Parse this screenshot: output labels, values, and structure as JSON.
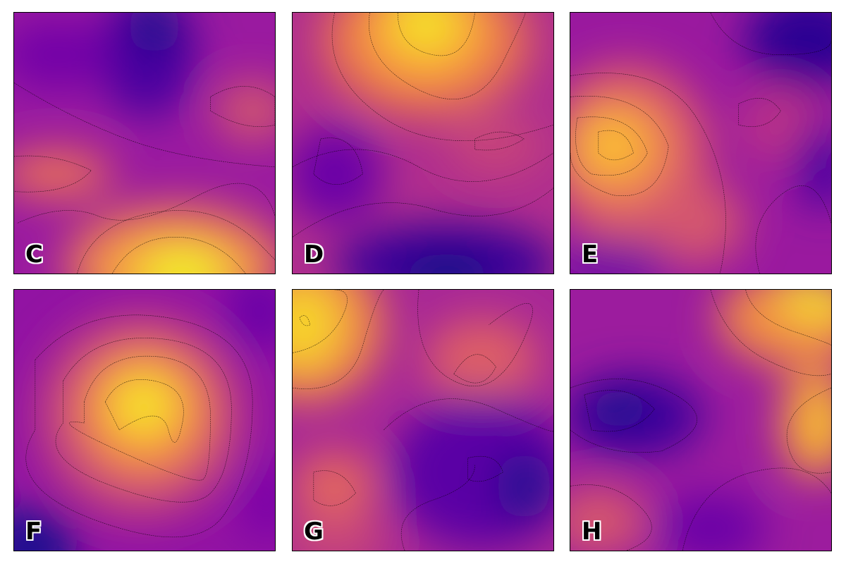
{
  "colormap": {
    "name": "plasma",
    "stops": [
      "#0d0887",
      "#5302a3",
      "#8b0aa5",
      "#b83289",
      "#db5c68",
      "#f48849",
      "#febd2a",
      "#f0f921"
    ]
  },
  "panels": [
    {
      "id": "C",
      "label": "C"
    },
    {
      "id": "D",
      "label": "D"
    },
    {
      "id": "E",
      "label": "E"
    },
    {
      "id": "F",
      "label": "F"
    },
    {
      "id": "G",
      "label": "G"
    },
    {
      "id": "H",
      "label": "H"
    }
  ]
}
